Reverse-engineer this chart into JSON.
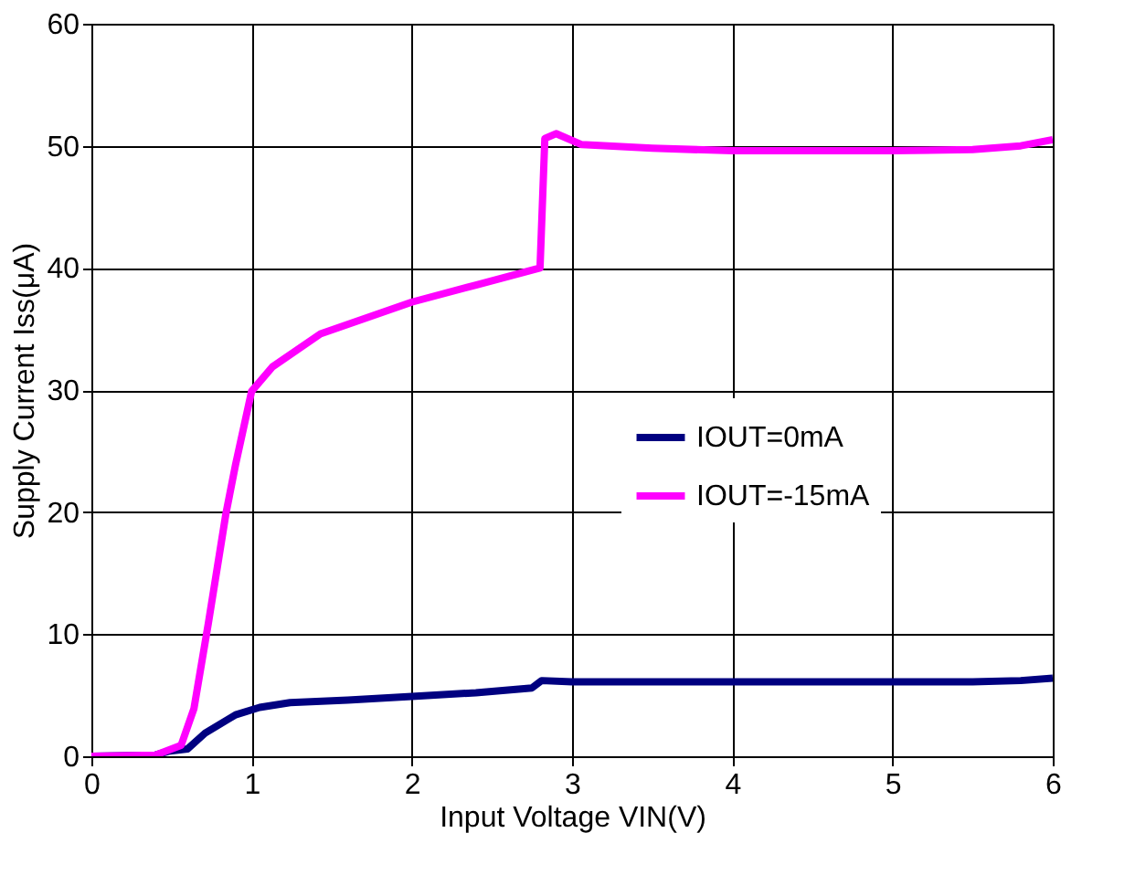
{
  "chart_data": {
    "type": "line",
    "xlabel": "Input Voltage VIN(V)",
    "ylabel": "Supply Current Iss(μA)",
    "xlim": [
      0,
      6
    ],
    "xticks": [
      0,
      1,
      2,
      3,
      4,
      5,
      6
    ],
    "ylim": [
      0,
      60
    ],
    "yticks": [
      0,
      10,
      20,
      30,
      40,
      50,
      60
    ],
    "grid": true,
    "legend": "right",
    "line_style": "solid",
    "marker": "none",
    "series": [
      {
        "name": "IOUT=0mA",
        "color": "#000080",
        "x": [
          0,
          0.4,
          0.48,
          0.6,
          0.71,
          0.9,
          1.05,
          1.24,
          1.6,
          2,
          2.4,
          2.75,
          2.81,
          3.0,
          3.5,
          4,
          4.5,
          5,
          5.5,
          5.8,
          6
        ],
        "values": [
          0,
          0.1,
          0.4,
          0.6,
          1.9,
          3.4,
          4,
          4.4,
          4.6,
          4.9,
          5.2,
          5.6,
          6.2,
          6.1,
          6.1,
          6.1,
          6.1,
          6.1,
          6.1,
          6.2,
          6.4
        ]
      },
      {
        "name": "IOUT=-15mA",
        "color": "#ff00ff",
        "x": [
          0,
          0.4,
          0.56,
          0.64,
          0.73,
          0.84,
          0.9,
          1.0,
          1.13,
          1.43,
          2.0,
          2.4,
          2.8,
          2.83,
          2.9,
          3.06,
          3.5,
          4,
          4.5,
          5,
          5.5,
          5.8,
          6
        ],
        "values": [
          0,
          0.1,
          0.9,
          3.9,
          10.9,
          19.9,
          23.9,
          29.9,
          31.9,
          34.6,
          37.2,
          38.6,
          40,
          50.6,
          51,
          50.1,
          49.8,
          49.6,
          49.6,
          49.6,
          49.7,
          50,
          50.5
        ]
      }
    ]
  }
}
